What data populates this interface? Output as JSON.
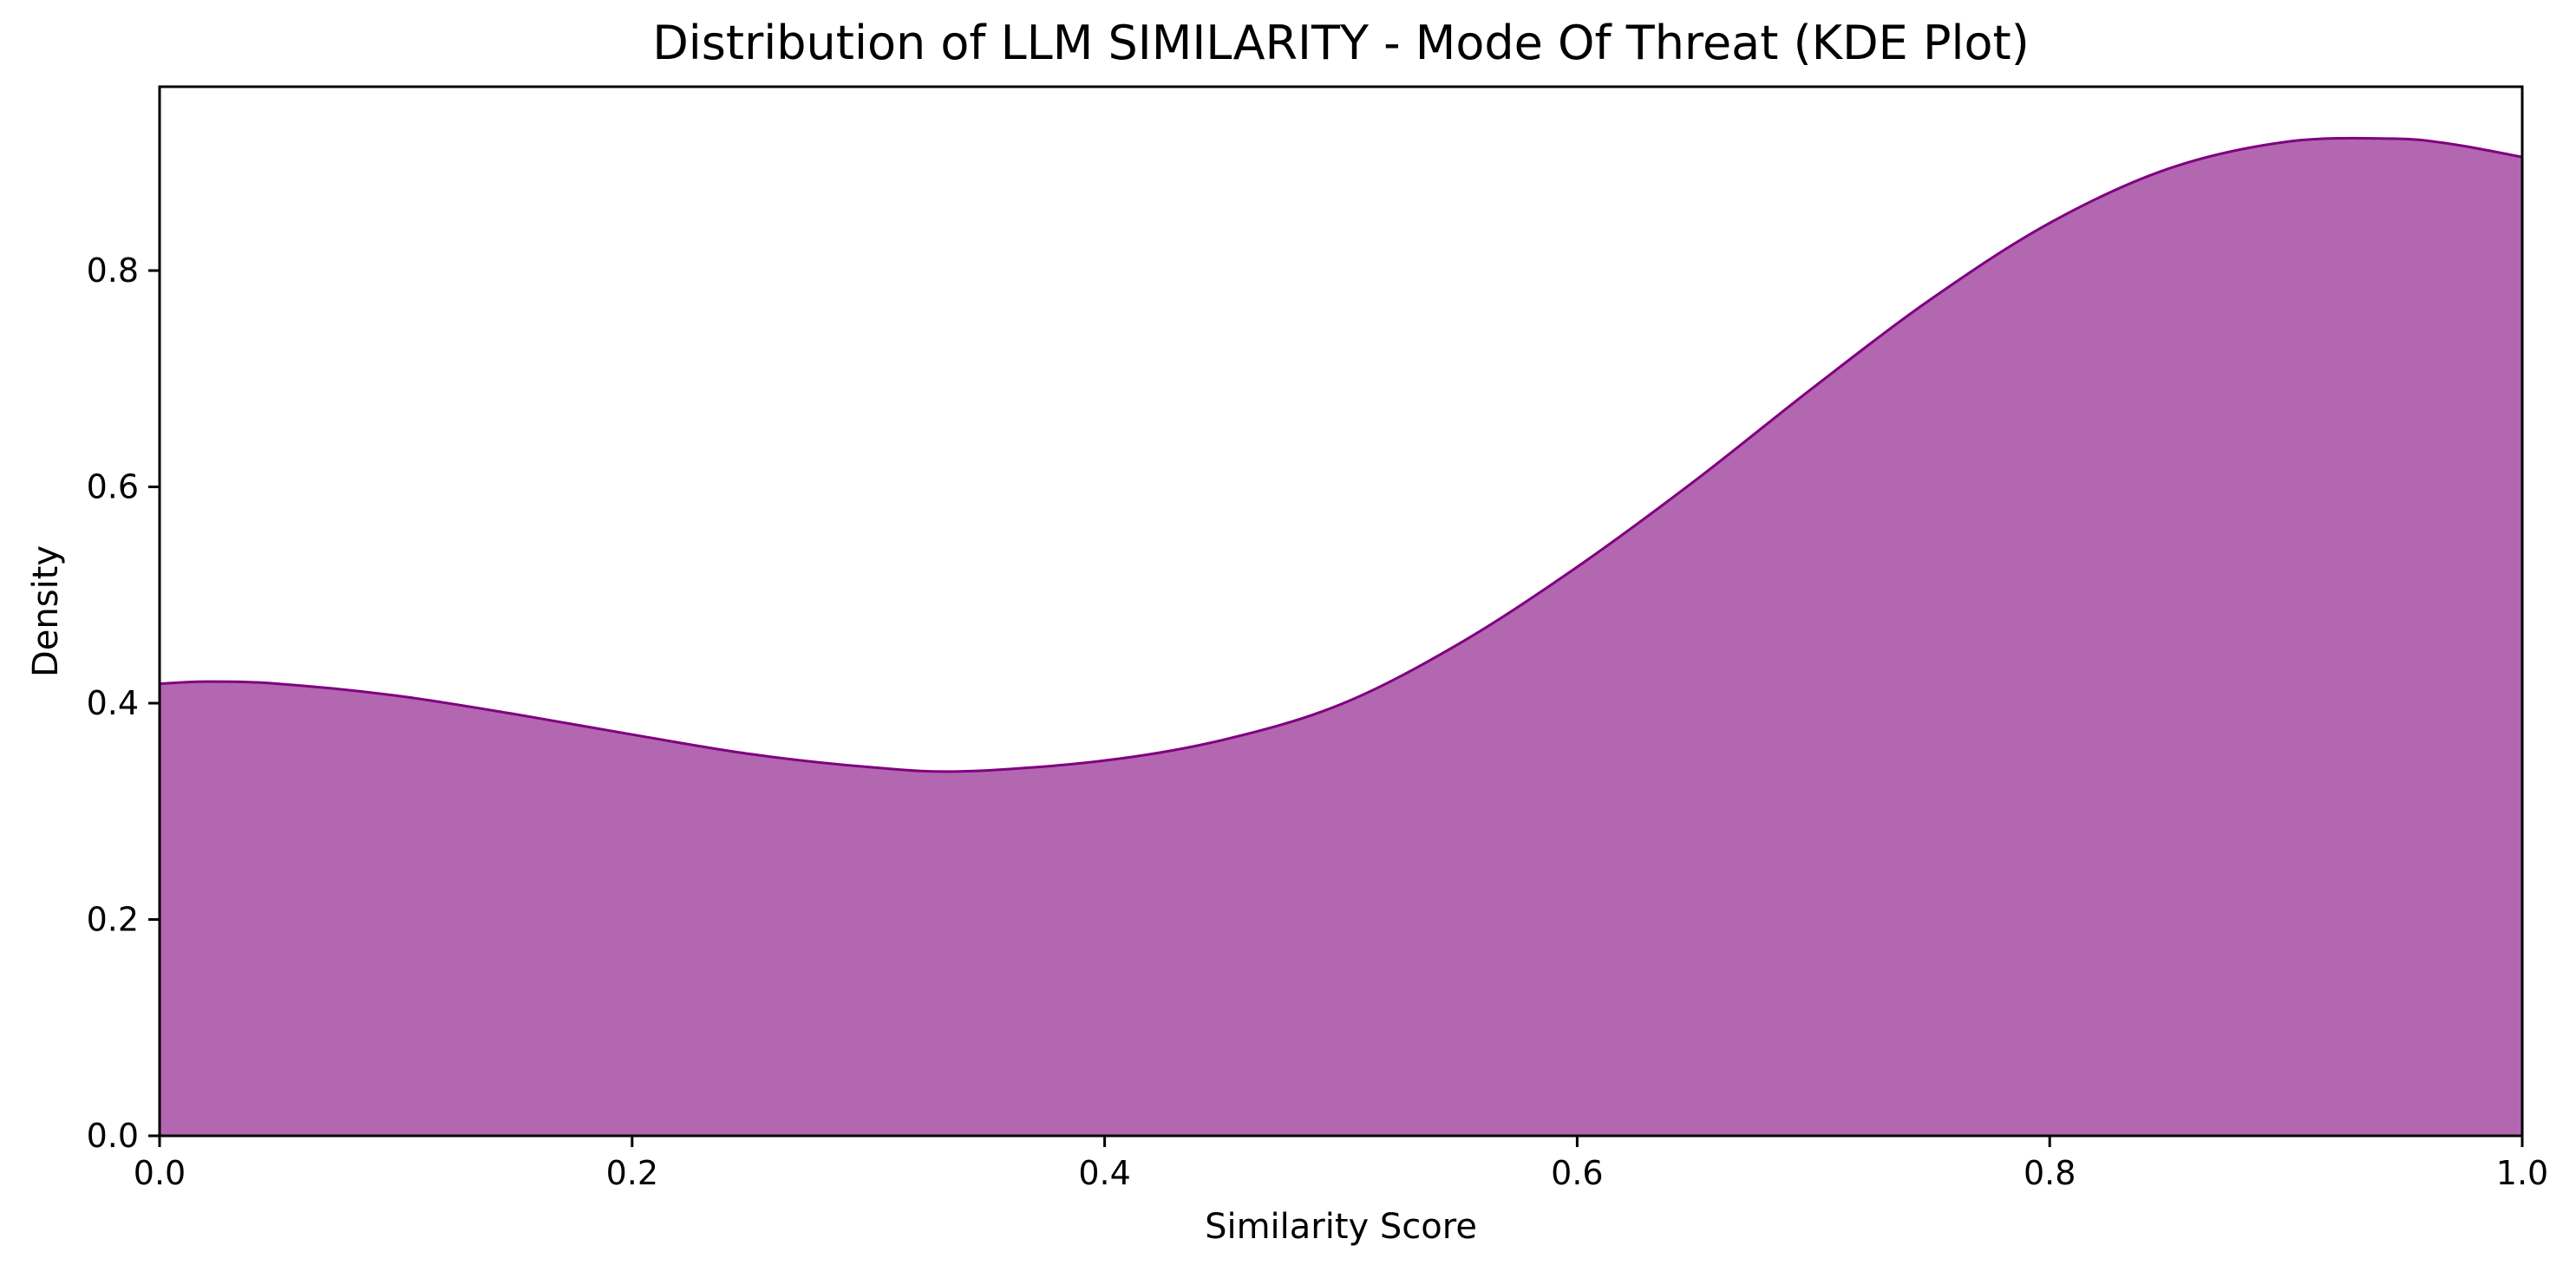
{
  "chart_data": {
    "type": "area",
    "title": "Distribution of LLM SIMILARITY - Mode Of Threat (KDE Plot)",
    "xlabel": "Similarity Score",
    "ylabel": "Density",
    "xlim": [
      0.0,
      1.0
    ],
    "ylim": [
      0.0,
      0.97
    ],
    "x_ticks": [
      "0.0",
      "0.2",
      "0.4",
      "0.6",
      "0.8",
      "1.0"
    ],
    "y_ticks": [
      "0.0",
      "0.2",
      "0.4",
      "0.6",
      "0.8"
    ],
    "grid": false,
    "legend": "none",
    "series": [
      {
        "x": [
          0.0,
          0.02,
          0.05,
          0.1,
          0.15,
          0.2,
          0.25,
          0.3,
          0.34,
          0.4,
          0.45,
          0.5,
          0.55,
          0.6,
          0.65,
          0.7,
          0.75,
          0.8,
          0.85,
          0.9,
          0.945,
          0.97,
          1.0
        ],
        "y": [
          0.418,
          0.42,
          0.418,
          0.407,
          0.39,
          0.371,
          0.353,
          0.341,
          0.337,
          0.347,
          0.366,
          0.399,
          0.455,
          0.526,
          0.606,
          0.692,
          0.774,
          0.844,
          0.894,
          0.919,
          0.922,
          0.917,
          0.905
        ]
      }
    ],
    "colors": {
      "fill": "#b267b0",
      "line": "#800080"
    }
  }
}
